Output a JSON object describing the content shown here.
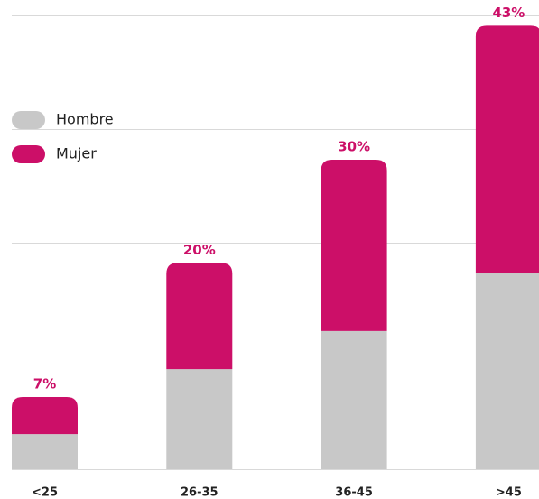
{
  "chart_data": {
    "type": "stacked_bar",
    "categories": [
      "<25",
      "26-35",
      "36-45",
      ">45"
    ],
    "series": [
      {
        "name": "Hombre",
        "color": "#c8c8c8",
        "values": [
          3.4,
          9.7,
          13.4,
          19
        ]
      },
      {
        "name": "Mujer",
        "color": "#cc0f68",
        "values": [
          3.6,
          10.3,
          16.6,
          24
        ]
      }
    ],
    "totals": [
      7,
      20,
      30,
      43
    ],
    "total_labels": [
      "7%",
      "20%",
      "30%",
      "43%"
    ],
    "ylim": [
      0,
      44
    ],
    "yticks": [
      0,
      11,
      22,
      33,
      44
    ],
    "grid": true
  }
}
